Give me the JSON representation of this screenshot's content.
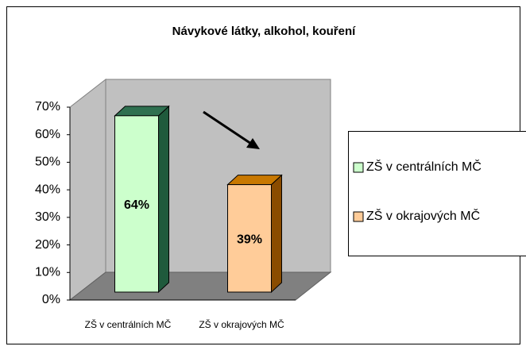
{
  "chart_data": {
    "type": "bar3d",
    "title": "Návykové látky, alkohol, kouření",
    "categories": [
      "ZŠ v centrálních MČ",
      "ZŠ v okrajových MČ"
    ],
    "values": [
      64,
      39
    ],
    "value_labels": [
      "64%",
      "39%"
    ],
    "colors": [
      "#ccffcc",
      "#ffcc99"
    ],
    "side_colors": [
      "#1f5a3c",
      "#8a4c00"
    ],
    "top_colors": [
      "#2f7050",
      "#c87800"
    ],
    "ylim": [
      0,
      70
    ],
    "yticks": [
      {
        "value": 0,
        "label": "0%"
      },
      {
        "value": 10,
        "label": "10%"
      },
      {
        "value": 20,
        "label": "20%"
      },
      {
        "value": 30,
        "label": "30%"
      },
      {
        "value": 40,
        "label": "40%"
      },
      {
        "value": 50,
        "label": "50%"
      },
      {
        "value": 60,
        "label": "60%"
      },
      {
        "value": 70,
        "label": "70%"
      }
    ],
    "legend": "right"
  }
}
